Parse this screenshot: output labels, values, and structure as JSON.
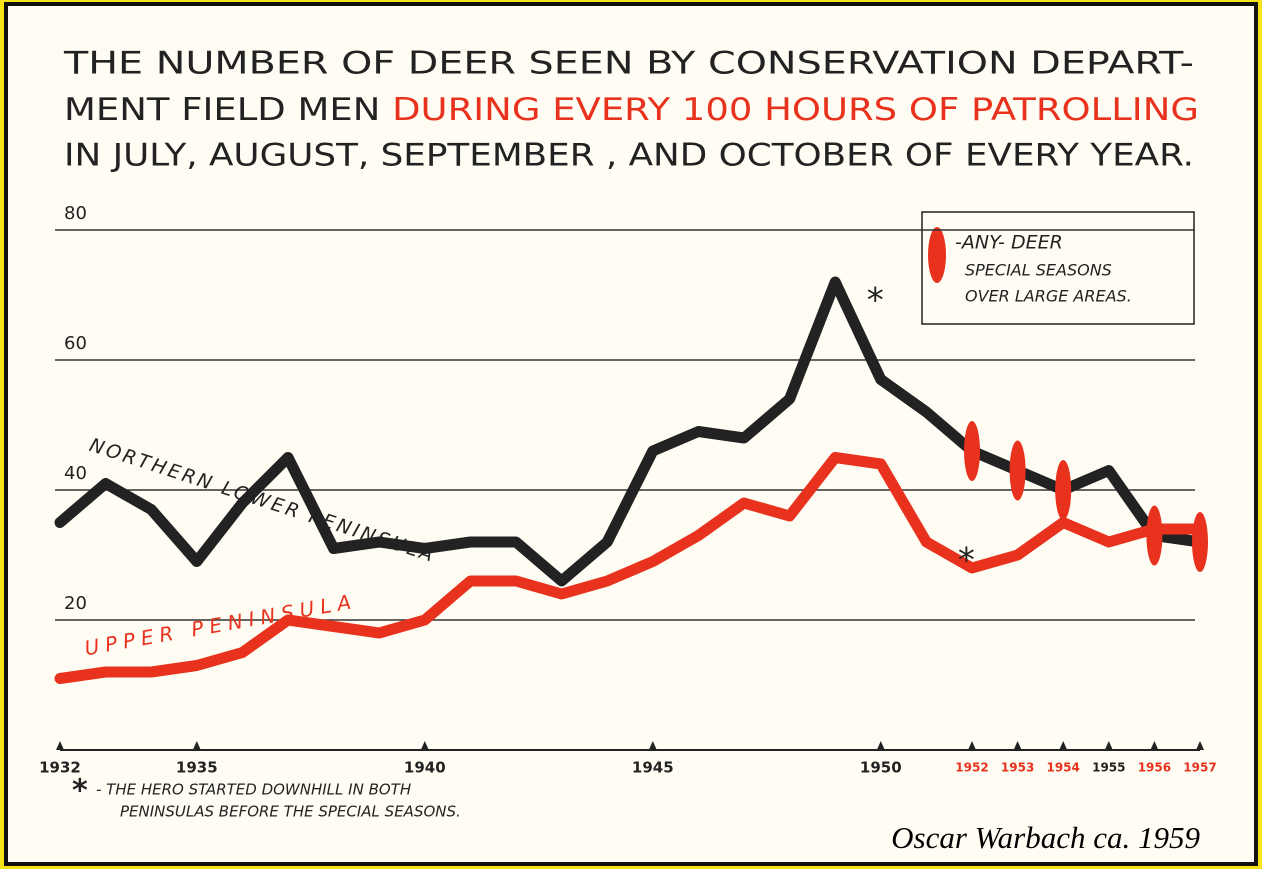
{
  "chart_data": {
    "type": "line",
    "title_lines": [
      "THE NUMBER OF DEER SEEN BY CONSERVATION DEPART-",
      "MENT FIELD MEN",
      "DURING EVERY 100 HOURS OF PATROLLING",
      "IN JULY, AUGUST, SEPTEMBER , AND OCTOBER OF EVERY YEAR."
    ],
    "title_highlight_color": "#e8321e",
    "x": [
      1932,
      1933,
      1934,
      1935,
      1936,
      1937,
      1938,
      1939,
      1940,
      1941,
      1942,
      1943,
      1944,
      1945,
      1946,
      1947,
      1948,
      1949,
      1950,
      1951,
      1952,
      1953,
      1954,
      1955,
      1956,
      1957
    ],
    "series": [
      {
        "name": "NORTHERN LOWER PENINSULA",
        "color": "#222222",
        "values": [
          35,
          41,
          37,
          29,
          38,
          45,
          31,
          32,
          31,
          32,
          32,
          26,
          32,
          46,
          49,
          48,
          54,
          72,
          57,
          52,
          46,
          43,
          40,
          43,
          33,
          32
        ]
      },
      {
        "name": "UPPER PENINSULA",
        "color": "#e8321e",
        "values": [
          11,
          12,
          12,
          13,
          15,
          20,
          19,
          18,
          20,
          26,
          26,
          24,
          26,
          29,
          33,
          38,
          36,
          45,
          44,
          32,
          28,
          30,
          35,
          32,
          34,
          34
        ]
      }
    ],
    "xlim": [
      1932,
      1957
    ],
    "xticks": [
      1932,
      1935,
      1940,
      1945,
      1950,
      1952,
      1953,
      1954,
      1955,
      1956,
      1957
    ],
    "xtick_colors": [
      "#222222",
      "#222222",
      "#222222",
      "#222222",
      "#222222",
      "#e8321e",
      "#e8321e",
      "#e8321e",
      "#222222",
      "#e8321e",
      "#e8321e"
    ],
    "ylim": [
      0,
      80
    ],
    "yticks": [
      20,
      40,
      60,
      80
    ],
    "grid": true,
    "special_seasons": [
      1952,
      1953,
      1954,
      1956,
      1957
    ],
    "special_color": "#e8321e",
    "legend_lines": [
      "-ANY- DEER",
      "SPECIAL SEASONS",
      "OVER LARGE AREAS."
    ],
    "legend_position": "upper right",
    "annotation_symbol": "*",
    "annotation_years": [
      1949,
      1951
    ],
    "footnote_lines": [
      "- THE HERO STARTED DOWNHILL IN BOTH",
      "PENINSULAS BEFORE THE SPECIAL SEASONS."
    ],
    "credit": "Oscar Warbach ca. 1959"
  }
}
